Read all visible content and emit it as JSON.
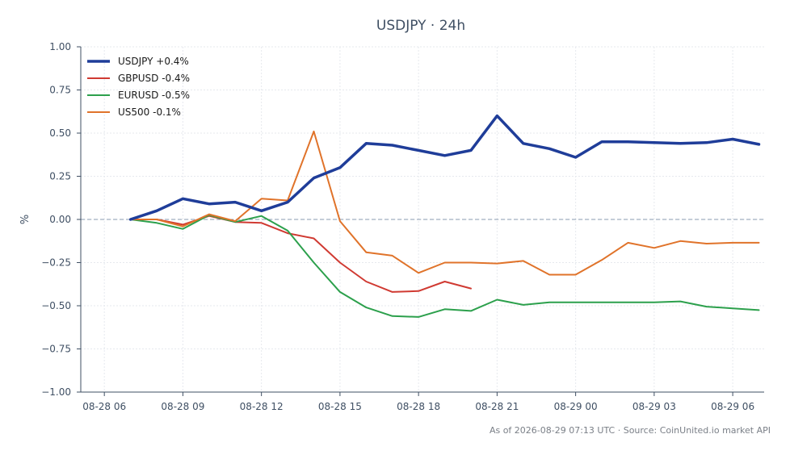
{
  "chart_data": {
    "type": "line",
    "title": "USDJPY · 24h",
    "ylabel": "%",
    "xlabel": "",
    "ylim": [
      -1.0,
      1.0
    ],
    "y_ticks": [
      1.0,
      0.75,
      0.5,
      0.25,
      0.0,
      -0.25,
      -0.5,
      -0.75,
      -1.0
    ],
    "y_tick_labels": [
      "1.00",
      "0.75",
      "0.50",
      "0.25",
      "0.00",
      "−0.25",
      "−0.50",
      "−0.75",
      "−1.00"
    ],
    "x_range_hours": [
      5.1,
      31.2
    ],
    "x_ticks": [
      6,
      9,
      12,
      15,
      18,
      21,
      24,
      27,
      30
    ],
    "x_tick_labels": [
      "08-28 06",
      "08-28 09",
      "08-28 12",
      "08-28 15",
      "08-28 18",
      "08-28 21",
      "08-29 00",
      "08-29 03",
      "08-29 06"
    ],
    "zero_line": true,
    "grid": true,
    "legend_position": "top-left",
    "series": [
      {
        "name": "USDJPY +0.4%",
        "color": "#1f3d99",
        "width": 3.5,
        "x": [
          7,
          8,
          9,
          10,
          11,
          12,
          13,
          14,
          15,
          16,
          17,
          18,
          19,
          20,
          21,
          22,
          23,
          24,
          25,
          26,
          27,
          28,
          29,
          30,
          31
        ],
        "y": [
          0.0,
          0.05,
          0.12,
          0.09,
          0.1,
          0.05,
          0.1,
          0.24,
          0.3,
          0.44,
          0.43,
          0.4,
          0.37,
          0.4,
          0.6,
          0.44,
          0.41,
          0.36,
          0.45,
          0.45,
          0.445,
          0.44,
          0.445,
          0.465,
          0.435
        ]
      },
      {
        "name": "GBPUSD -0.4%",
        "color": "#d03a32",
        "width": 2,
        "x": [
          7,
          8,
          9,
          10,
          11,
          12,
          13,
          14,
          15,
          16,
          17,
          18,
          19,
          20
        ],
        "y": [
          0.0,
          0.0,
          -0.03,
          0.02,
          -0.015,
          -0.02,
          -0.08,
          -0.11,
          -0.25,
          -0.36,
          -0.42,
          -0.415,
          -0.36,
          -0.4
        ]
      },
      {
        "name": "EURUSD -0.5%",
        "color": "#2ca04c",
        "width": 2,
        "x": [
          7,
          8,
          9,
          10,
          11,
          12,
          13,
          14,
          15,
          16,
          17,
          18,
          19,
          20,
          21,
          22,
          23,
          24,
          25,
          26,
          27,
          28,
          29,
          30,
          31
        ],
        "y": [
          0.0,
          -0.02,
          -0.055,
          0.025,
          -0.015,
          0.02,
          -0.065,
          -0.25,
          -0.42,
          -0.51,
          -0.56,
          -0.565,
          -0.52,
          -0.53,
          -0.465,
          -0.495,
          -0.48,
          -0.48,
          -0.48,
          -0.48,
          -0.48,
          -0.475,
          -0.505,
          -0.515,
          -0.525
        ]
      },
      {
        "name": "US500 -0.1%",
        "color": "#e0732a",
        "width": 2,
        "x": [
          7,
          8,
          9,
          10,
          11,
          12,
          13,
          14,
          15,
          16,
          17,
          18,
          19,
          20,
          21,
          22,
          23,
          24,
          25,
          26,
          27,
          28,
          29,
          30,
          31
        ],
        "y": [
          0.0,
          0.0,
          -0.04,
          0.03,
          -0.01,
          0.12,
          0.11,
          0.51,
          -0.01,
          -0.19,
          -0.21,
          -0.31,
          -0.25,
          -0.25,
          -0.255,
          -0.24,
          -0.32,
          -0.32,
          -0.235,
          -0.135,
          -0.165,
          -0.125,
          -0.14,
          -0.135,
          -0.135
        ]
      }
    ]
  },
  "footer": {
    "text": "As of 2026-08-29 07:13 UTC · Source: CoinUnited.io market API"
  }
}
